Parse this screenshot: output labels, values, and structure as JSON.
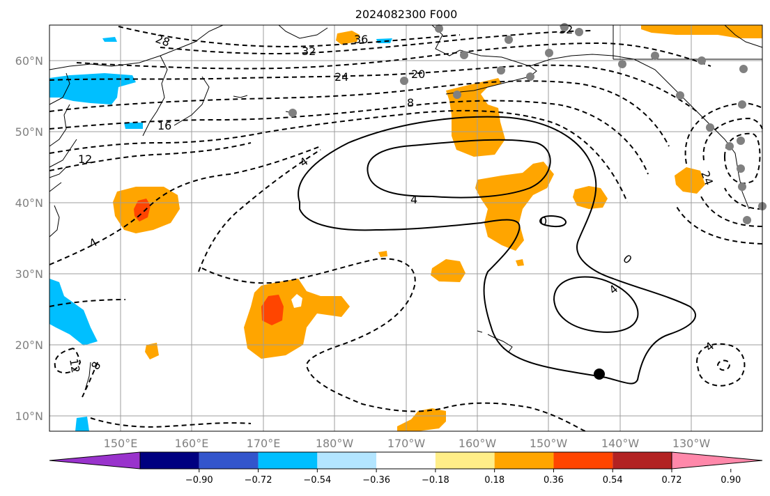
{
  "title": "2024082300 F000",
  "lat_labels": [
    "60°N",
    "50°N",
    "40°N",
    "30°N",
    "20°N",
    "10°N"
  ],
  "lon_labels": [
    "150°E",
    "160°E",
    "170°E",
    "180°W",
    "170°W",
    "160°W",
    "150°W",
    "140°W",
    "130°W"
  ],
  "colorbar": {
    "ticks": [
      "−0.90",
      "−0.72",
      "−0.54",
      "−0.36",
      "−0.18",
      "0.18",
      "0.36",
      "0.54",
      "0.72",
      "0.90"
    ],
    "colors": [
      "#9933cc",
      "#000080",
      "#3355cc",
      "#00bfff",
      "#b3e5ff",
      "#ffffff",
      "#ffee88",
      "#ffa500",
      "#ff4500",
      "#b22222",
      "#ff88aa"
    ]
  },
  "contour_labels": [
    "28",
    "36",
    "32",
    "32",
    "24",
    "20",
    "8",
    "16",
    "12",
    "4",
    "4",
    "4",
    "0",
    "0",
    "4",
    "24",
    "4",
    "12",
    "8"
  ],
  "colors": {
    "orange": "#ffa500",
    "red_orange": "#ff4500",
    "cyan": "#00bfff",
    "station": "#808080"
  }
}
